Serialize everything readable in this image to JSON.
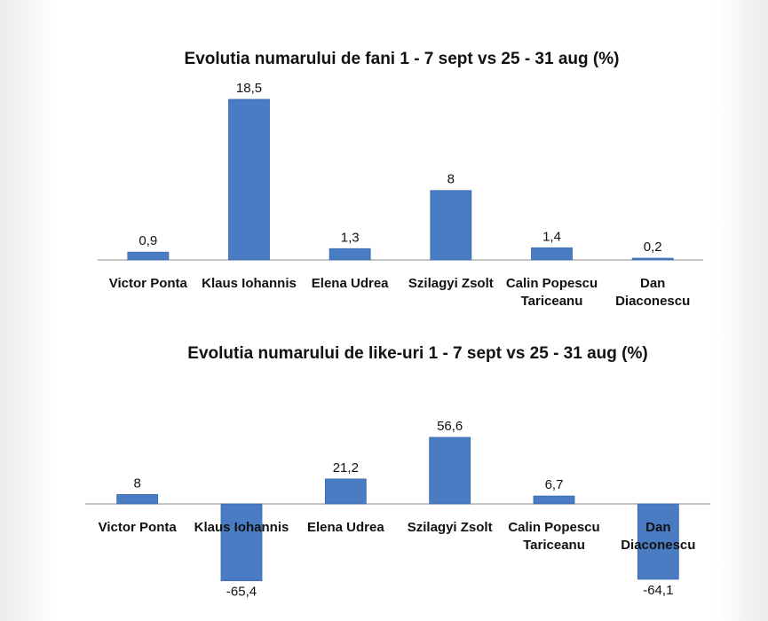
{
  "colors": {
    "bar": "#4a7cc4",
    "bar_edge": "#3a69ad",
    "axis": "#8c8c8c"
  },
  "chart_data": [
    {
      "type": "bar",
      "title": "Evolutia numarului de fani 1 - 7 sept vs  25 - 31 aug (%)",
      "categories": [
        [
          "Victor Ponta"
        ],
        [
          "Klaus Iohannis"
        ],
        [
          "Elena Udrea"
        ],
        [
          "Szilagyi Zsolt"
        ],
        [
          "Calin Popescu",
          "Tariceanu"
        ],
        [
          "Dan",
          "Diaconescu"
        ]
      ],
      "values": [
        0.9,
        18.5,
        1.3,
        8,
        1.4,
        0.2
      ],
      "value_labels": [
        "0,9",
        "18,5",
        "1,3",
        "8",
        "1,4",
        "0,2"
      ],
      "xlabel": "",
      "ylabel": "",
      "ylim": [
        0,
        18.5
      ],
      "grid": false,
      "legend": "none"
    },
    {
      "type": "bar",
      "title": "Evolutia numarului de like-uri 1 - 7 sept vs  25 - 31 aug (%)",
      "categories": [
        [
          "Victor Ponta"
        ],
        [
          "Klaus Iohannis"
        ],
        [
          "Elena Udrea"
        ],
        [
          "Szilagyi Zsolt"
        ],
        [
          "Calin Popescu",
          "Tariceanu"
        ],
        [
          "Dan",
          "Diaconescu"
        ]
      ],
      "values": [
        8,
        -65.4,
        21.2,
        56.6,
        6.7,
        -64.1
      ],
      "value_labels": [
        "8",
        "-65,4",
        "21,2",
        "56,6",
        "6,7",
        "-64,1"
      ],
      "xlabel": "",
      "ylabel": "",
      "ylim": [
        -65.4,
        56.6
      ],
      "grid": false,
      "legend": "none"
    }
  ]
}
